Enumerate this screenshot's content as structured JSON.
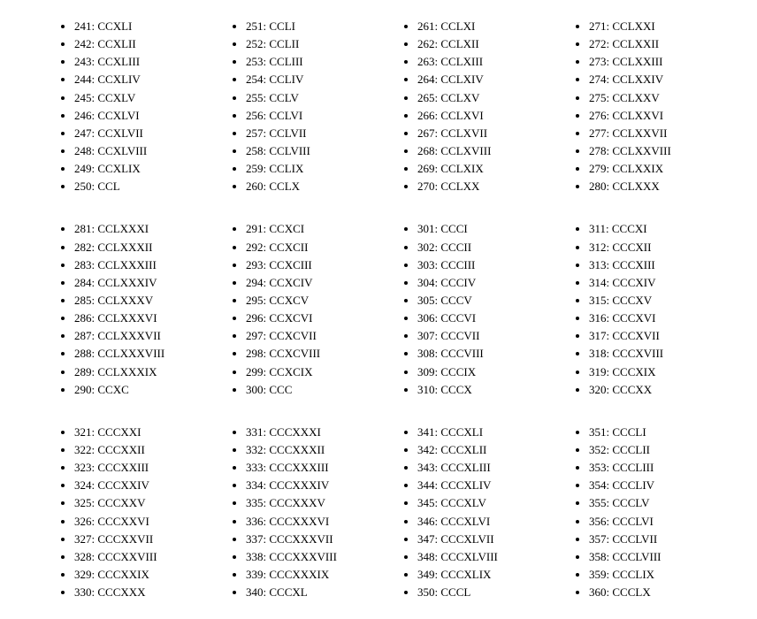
{
  "blocks": [
    {
      "items": [
        {
          "num": "241",
          "roman": "CCXLI"
        },
        {
          "num": "242",
          "roman": "CCXLII"
        },
        {
          "num": "243",
          "roman": "CCXLIII"
        },
        {
          "num": "244",
          "roman": "CCXLIV"
        },
        {
          "num": "245",
          "roman": "CCXLV"
        },
        {
          "num": "246",
          "roman": "CCXLVI"
        },
        {
          "num": "247",
          "roman": "CCXLVII"
        },
        {
          "num": "248",
          "roman": "CCXLVIII"
        },
        {
          "num": "249",
          "roman": "CCXLIX"
        },
        {
          "num": "250",
          "roman": "CCL"
        }
      ]
    },
    {
      "items": [
        {
          "num": "251",
          "roman": "CCLI"
        },
        {
          "num": "252",
          "roman": "CCLII"
        },
        {
          "num": "253",
          "roman": "CCLIII"
        },
        {
          "num": "254",
          "roman": "CCLIV"
        },
        {
          "num": "255",
          "roman": "CCLV"
        },
        {
          "num": "256",
          "roman": "CCLVI"
        },
        {
          "num": "257",
          "roman": "CCLVII"
        },
        {
          "num": "258",
          "roman": "CCLVIII"
        },
        {
          "num": "259",
          "roman": "CCLIX"
        },
        {
          "num": "260",
          "roman": "CCLX"
        }
      ]
    },
    {
      "items": [
        {
          "num": "261",
          "roman": "CCLXI"
        },
        {
          "num": "262",
          "roman": "CCLXII"
        },
        {
          "num": "263",
          "roman": "CCLXIII"
        },
        {
          "num": "264",
          "roman": "CCLXIV"
        },
        {
          "num": "265",
          "roman": "CCLXV"
        },
        {
          "num": "266",
          "roman": "CCLXVI"
        },
        {
          "num": "267",
          "roman": "CCLXVII"
        },
        {
          "num": "268",
          "roman": "CCLXVIII"
        },
        {
          "num": "269",
          "roman": "CCLXIX"
        },
        {
          "num": "270",
          "roman": "CCLXX"
        }
      ]
    },
    {
      "items": [
        {
          "num": "271",
          "roman": "CCLXXI"
        },
        {
          "num": "272",
          "roman": "CCLXXII"
        },
        {
          "num": "273",
          "roman": "CCLXXIII"
        },
        {
          "num": "274",
          "roman": "CCLXXIV"
        },
        {
          "num": "275",
          "roman": "CCLXXV"
        },
        {
          "num": "276",
          "roman": "CCLXXVI"
        },
        {
          "num": "277",
          "roman": "CCLXXVII"
        },
        {
          "num": "278",
          "roman": "CCLXXVIII"
        },
        {
          "num": "279",
          "roman": "CCLXXIX"
        },
        {
          "num": "280",
          "roman": "CCLXXX"
        }
      ]
    },
    {
      "items": [
        {
          "num": "281",
          "roman": "CCLXXXI"
        },
        {
          "num": "282",
          "roman": "CCLXXXII"
        },
        {
          "num": "283",
          "roman": "CCLXXXIII"
        },
        {
          "num": "284",
          "roman": "CCLXXXIV"
        },
        {
          "num": "285",
          "roman": "CCLXXXV"
        },
        {
          "num": "286",
          "roman": "CCLXXXVI"
        },
        {
          "num": "287",
          "roman": "CCLXXXVII"
        },
        {
          "num": "288",
          "roman": "CCLXXXVIII"
        },
        {
          "num": "289",
          "roman": "CCLXXXIX"
        },
        {
          "num": "290",
          "roman": "CCXC"
        }
      ]
    },
    {
      "items": [
        {
          "num": "291",
          "roman": "CCXCI"
        },
        {
          "num": "292",
          "roman": "CCXCII"
        },
        {
          "num": "293",
          "roman": "CCXCIII"
        },
        {
          "num": "294",
          "roman": "CCXCIV"
        },
        {
          "num": "295",
          "roman": "CCXCV"
        },
        {
          "num": "296",
          "roman": "CCXCVI"
        },
        {
          "num": "297",
          "roman": "CCXCVII"
        },
        {
          "num": "298",
          "roman": "CCXCVIII"
        },
        {
          "num": "299",
          "roman": "CCXCIX"
        },
        {
          "num": "300",
          "roman": "CCC"
        }
      ]
    },
    {
      "items": [
        {
          "num": "301",
          "roman": "CCCI"
        },
        {
          "num": "302",
          "roman": "CCCII"
        },
        {
          "num": "303",
          "roman": "CCCIII"
        },
        {
          "num": "304",
          "roman": "CCCIV"
        },
        {
          "num": "305",
          "roman": "CCCV"
        },
        {
          "num": "306",
          "roman": "CCCVI"
        },
        {
          "num": "307",
          "roman": "CCCVII"
        },
        {
          "num": "308",
          "roman": "CCCVIII"
        },
        {
          "num": "309",
          "roman": "CCCIX"
        },
        {
          "num": "310",
          "roman": "CCCX"
        }
      ]
    },
    {
      "items": [
        {
          "num": "311",
          "roman": "CCCXI"
        },
        {
          "num": "312",
          "roman": "CCCXII"
        },
        {
          "num": "313",
          "roman": "CCCXIII"
        },
        {
          "num": "314",
          "roman": "CCCXIV"
        },
        {
          "num": "315",
          "roman": "CCCXV"
        },
        {
          "num": "316",
          "roman": "CCCXVI"
        },
        {
          "num": "317",
          "roman": "CCCXVII"
        },
        {
          "num": "318",
          "roman": "CCCXVIII"
        },
        {
          "num": "319",
          "roman": "CCCXIX"
        },
        {
          "num": "320",
          "roman": "CCCXX"
        }
      ]
    },
    {
      "items": [
        {
          "num": "321",
          "roman": "CCCXXI"
        },
        {
          "num": "322",
          "roman": "CCCXXII"
        },
        {
          "num": "323",
          "roman": "CCCXXIII"
        },
        {
          "num": "324",
          "roman": "CCCXXIV"
        },
        {
          "num": "325",
          "roman": "CCCXXV"
        },
        {
          "num": "326",
          "roman": "CCCXXVI"
        },
        {
          "num": "327",
          "roman": "CCCXXVII"
        },
        {
          "num": "328",
          "roman": "CCCXXVIII"
        },
        {
          "num": "329",
          "roman": "CCCXXIX"
        },
        {
          "num": "330",
          "roman": "CCCXXX"
        }
      ]
    },
    {
      "items": [
        {
          "num": "331",
          "roman": "CCCXXXI"
        },
        {
          "num": "332",
          "roman": "CCCXXXII"
        },
        {
          "num": "333",
          "roman": "CCCXXXIII"
        },
        {
          "num": "334",
          "roman": "CCCXXXIV"
        },
        {
          "num": "335",
          "roman": "CCCXXXV"
        },
        {
          "num": "336",
          "roman": "CCCXXXVI"
        },
        {
          "num": "337",
          "roman": "CCCXXXVII"
        },
        {
          "num": "338",
          "roman": "CCCXXXVIII"
        },
        {
          "num": "339",
          "roman": "CCCXXXIX"
        },
        {
          "num": "340",
          "roman": "CCCXL"
        }
      ]
    },
    {
      "items": [
        {
          "num": "341",
          "roman": "CCCXLI"
        },
        {
          "num": "342",
          "roman": "CCCXLII"
        },
        {
          "num": "343",
          "roman": "CCCXLIII"
        },
        {
          "num": "344",
          "roman": "CCCXLIV"
        },
        {
          "num": "345",
          "roman": "CCCXLV"
        },
        {
          "num": "346",
          "roman": "CCCXLVI"
        },
        {
          "num": "347",
          "roman": "CCCXLVII"
        },
        {
          "num": "348",
          "roman": "CCCXLVIII"
        },
        {
          "num": "349",
          "roman": "CCCXLIX"
        },
        {
          "num": "350",
          "roman": "CCCL"
        }
      ]
    },
    {
      "items": [
        {
          "num": "351",
          "roman": "CCCLI"
        },
        {
          "num": "352",
          "roman": "CCCLII"
        },
        {
          "num": "353",
          "roman": "CCCLIII"
        },
        {
          "num": "354",
          "roman": "CCCLIV"
        },
        {
          "num": "355",
          "roman": "CCCLV"
        },
        {
          "num": "356",
          "roman": "CCCLVI"
        },
        {
          "num": "357",
          "roman": "CCCLVII"
        },
        {
          "num": "358",
          "roman": "CCCLVIII"
        },
        {
          "num": "359",
          "roman": "CCCLIX"
        },
        {
          "num": "360",
          "roman": "CCCLX"
        }
      ]
    }
  ]
}
